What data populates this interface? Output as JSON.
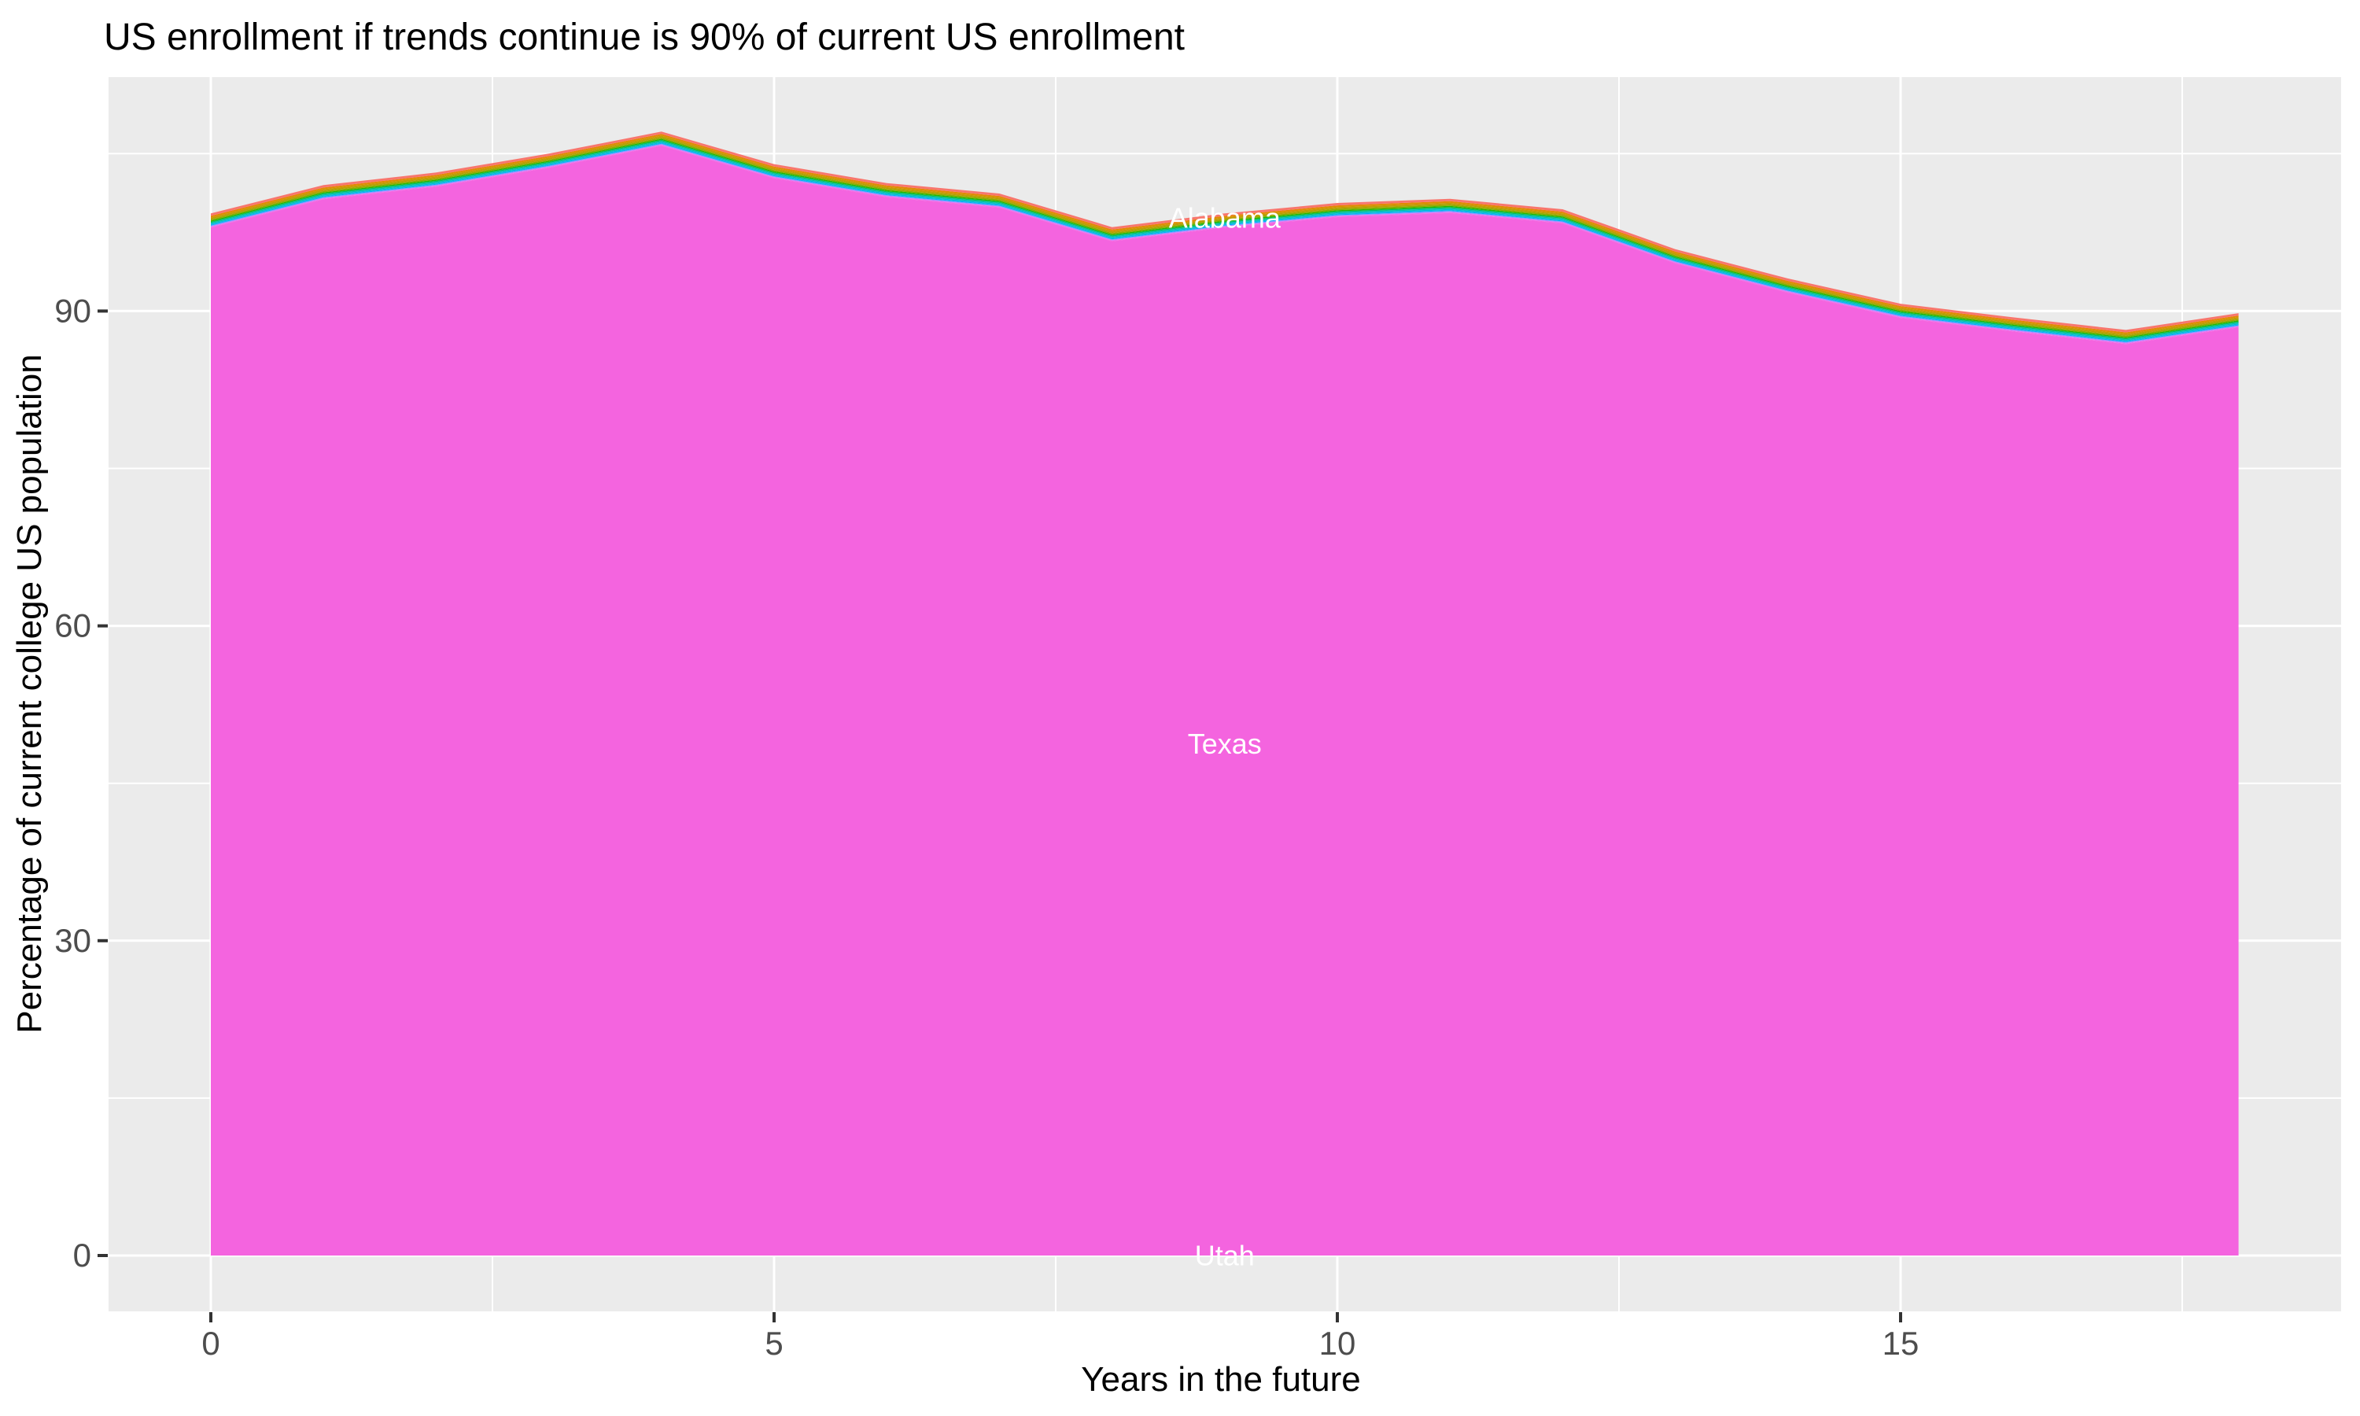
{
  "title": "US enrollment if trends continue is 90% of current US enrollment",
  "axes": {
    "x": {
      "title": "Years in the future",
      "ticks": [
        0,
        5,
        10,
        15
      ],
      "minor_ticks": [
        2.5,
        7.5,
        12.5,
        17.5
      ],
      "range": [
        -0.9,
        18.9
      ]
    },
    "y": {
      "title": "Percentage of current college US population",
      "ticks": [
        0,
        30,
        60,
        90
      ],
      "minor_ticks": [
        15,
        45,
        75,
        105
      ],
      "range": [
        -5.3,
        112.3
      ]
    }
  },
  "colors": {
    "panel_background": "#EBEBEB",
    "gridline": "#FFFFFF",
    "tick_mark": "#333333",
    "tick_text": "#4D4D4D",
    "title_text": "#000000",
    "texas_fill": "#F464DF",
    "area_label_text": "#FFFFFF"
  },
  "chart_data": {
    "type": "area",
    "stacked": true,
    "description": "Stacked area of US states' projected enrollment as % of current total US enrollment; Texas band dominates, remaining states form thin rainbow strips on top (Alabama topmost), states after Texas squeezed near 0 (Utah).",
    "xlabel": "Years in the future",
    "ylabel": "Percentage of current college US population",
    "x_years": [
      0,
      1,
      2,
      3,
      4,
      5,
      6,
      7,
      8,
      9,
      10,
      11,
      12,
      13,
      14,
      15,
      16,
      17,
      18
    ],
    "total_top_pct": [
      99.3,
      102.0,
      103.2,
      105.0,
      107.1,
      104.0,
      102.2,
      101.2,
      98.0,
      99.3,
      100.3,
      100.7,
      99.7,
      95.9,
      93.1,
      90.7,
      89.4,
      88.2,
      89.8
    ],
    "baseline_pct": 0,
    "top_band": {
      "thickness_pct": 1.35,
      "strip_colors": [
        "#F8766D",
        "#E18A00",
        "#BE9C00",
        "#8CAB00",
        "#24B700",
        "#00BE70",
        "#00C1AB",
        "#00BBDA",
        "#00ACFC",
        "#8B93FF",
        "#D575FE",
        "#F962DD"
      ],
      "strip_weights": [
        0.17,
        0.12,
        0.12,
        0.1,
        0.08,
        0.07,
        0.07,
        0.07,
        0.06,
        0.05,
        0.05,
        0.04
      ]
    },
    "area_labels": [
      {
        "text": "Alabama",
        "x": 9,
        "y_pct": 98.9
      },
      {
        "text": "Texas",
        "x": 9,
        "y_pct": 48.8
      },
      {
        "text": "Utah",
        "x": 9,
        "y_pct": 0.05
      }
    ]
  }
}
